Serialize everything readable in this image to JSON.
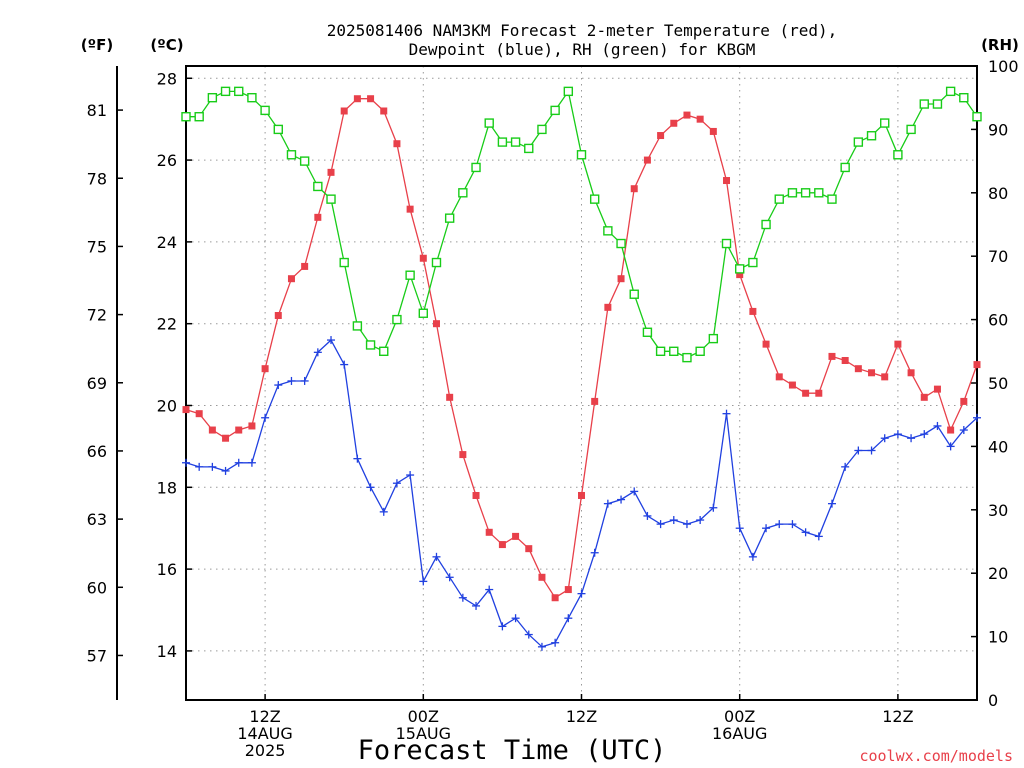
{
  "chart_data": {
    "type": "line",
    "title_lines": [
      "2025081406 NAM3KM Forecast 2-meter Temperature (red),",
      "Dewpoint (blue), RH (green) for KBGM"
    ],
    "xlabel": "Forecast Time (UTC)",
    "credit": "coolwx.com/models",
    "units": {
      "f": "(ºF)",
      "c": "(ºC)",
      "rh": "(RH)"
    },
    "x_unit": "forecast hour from 2025081406",
    "x_range": [
      0,
      60
    ],
    "x_ticks": [
      {
        "h": 6,
        "lines": [
          "12Z",
          "14AUG",
          "2025"
        ]
      },
      {
        "h": 18,
        "lines": [
          "00Z",
          "15AUG"
        ]
      },
      {
        "h": 30,
        "lines": [
          "12Z"
        ]
      },
      {
        "h": 42,
        "lines": [
          "00Z",
          "16AUG"
        ]
      },
      {
        "h": 54,
        "lines": [
          "12Z"
        ]
      }
    ],
    "y_left_celsius": {
      "range": [
        12.8,
        28.3
      ],
      "ticks": [
        14,
        16,
        18,
        20,
        22,
        24,
        26,
        28
      ]
    },
    "y_left_fahrenheit": {
      "ticks": [
        57,
        60,
        63,
        66,
        69,
        72,
        75,
        78,
        81
      ]
    },
    "y_right_rh": {
      "range": [
        0,
        100
      ],
      "ticks": [
        0,
        10,
        20,
        30,
        40,
        50,
        60,
        70,
        80,
        90,
        100
      ]
    },
    "grid": true,
    "series": [
      {
        "name": "2-meter Temperature",
        "color": "#e8404a",
        "marker": "filled-square",
        "axis": "celsius",
        "x": [
          0,
          1,
          2,
          3,
          4,
          5,
          6,
          7,
          8,
          9,
          10,
          11,
          12,
          13,
          14,
          15,
          16,
          17,
          18,
          19,
          20,
          21,
          22,
          23,
          24,
          25,
          26,
          27,
          28,
          29,
          30,
          31,
          32,
          33,
          34,
          35,
          36,
          37,
          38,
          39,
          40,
          41,
          42,
          43,
          44,
          45,
          46,
          47,
          48,
          49,
          50,
          51,
          52,
          53,
          54,
          55,
          56,
          57,
          58,
          59,
          60
        ],
        "values": [
          19.9,
          19.8,
          19.4,
          19.2,
          19.4,
          19.5,
          20.9,
          22.2,
          23.1,
          23.4,
          24.6,
          25.7,
          27.2,
          27.5,
          27.5,
          27.2,
          26.4,
          24.8,
          23.6,
          22.0,
          20.2,
          18.8,
          17.8,
          16.9,
          16.6,
          16.8,
          16.5,
          15.8,
          15.3,
          15.5,
          17.8,
          20.1,
          22.4,
          23.1,
          25.3,
          26.0,
          26.6,
          26.9,
          27.1,
          27.0,
          26.7,
          25.5,
          23.2,
          22.3,
          21.5,
          20.7,
          20.5,
          20.3,
          20.3,
          21.2,
          21.1,
          20.9,
          20.8,
          20.7,
          21.5,
          20.8,
          20.2,
          20.4,
          19.4,
          20.1,
          21.0
        ]
      },
      {
        "name": "Dewpoint",
        "color": "#2040e0",
        "marker": "plus",
        "axis": "celsius",
        "x": [
          0,
          1,
          2,
          3,
          4,
          5,
          6,
          7,
          8,
          9,
          10,
          11,
          12,
          13,
          14,
          15,
          16,
          17,
          18,
          19,
          20,
          21,
          22,
          23,
          24,
          25,
          26,
          27,
          28,
          29,
          30,
          31,
          32,
          33,
          34,
          35,
          36,
          37,
          38,
          39,
          40,
          41,
          42,
          43,
          44,
          45,
          46,
          47,
          48,
          49,
          50,
          51,
          52,
          53,
          54,
          55,
          56,
          57,
          58,
          59,
          60
        ],
        "values": [
          18.6,
          18.5,
          18.5,
          18.4,
          18.6,
          18.6,
          19.7,
          20.5,
          20.6,
          20.6,
          21.3,
          21.6,
          21.0,
          18.7,
          18.0,
          17.4,
          18.1,
          18.3,
          15.7,
          16.3,
          15.8,
          15.3,
          15.1,
          15.5,
          14.6,
          14.8,
          14.4,
          14.1,
          14.2,
          14.8,
          15.4,
          16.4,
          17.6,
          17.7,
          17.9,
          17.3,
          17.1,
          17.2,
          17.1,
          17.2,
          17.5,
          19.8,
          17.0,
          16.3,
          17.0,
          17.1,
          17.1,
          16.9,
          16.8,
          17.6,
          18.5,
          18.9,
          18.9,
          19.2,
          19.3,
          19.2,
          19.3,
          19.5,
          19.0,
          19.4,
          19.7
        ]
      },
      {
        "name": "RH",
        "color": "#18cc18",
        "marker": "open-square",
        "axis": "rh",
        "x": [
          0,
          1,
          2,
          3,
          4,
          5,
          6,
          7,
          8,
          9,
          10,
          11,
          12,
          13,
          14,
          15,
          16,
          17,
          18,
          19,
          20,
          21,
          22,
          23,
          24,
          25,
          26,
          27,
          28,
          29,
          30,
          31,
          32,
          33,
          34,
          35,
          36,
          37,
          38,
          39,
          40,
          41,
          42,
          43,
          44,
          45,
          46,
          47,
          48,
          49,
          50,
          51,
          52,
          53,
          54,
          55,
          56,
          57,
          58,
          59,
          60
        ],
        "values": [
          92,
          92,
          95,
          96,
          96,
          95,
          93,
          90,
          86,
          85,
          81,
          79,
          69,
          59,
          56,
          55,
          60,
          67,
          61,
          69,
          76,
          80,
          84,
          91,
          88,
          88,
          87,
          90,
          93,
          96,
          86,
          79,
          74,
          72,
          64,
          58,
          55,
          55,
          54,
          55,
          57,
          72,
          68,
          69,
          75,
          79,
          80,
          80,
          80,
          79,
          84,
          88,
          89,
          91,
          86,
          90,
          94,
          94,
          96,
          95,
          92
        ]
      }
    ]
  }
}
